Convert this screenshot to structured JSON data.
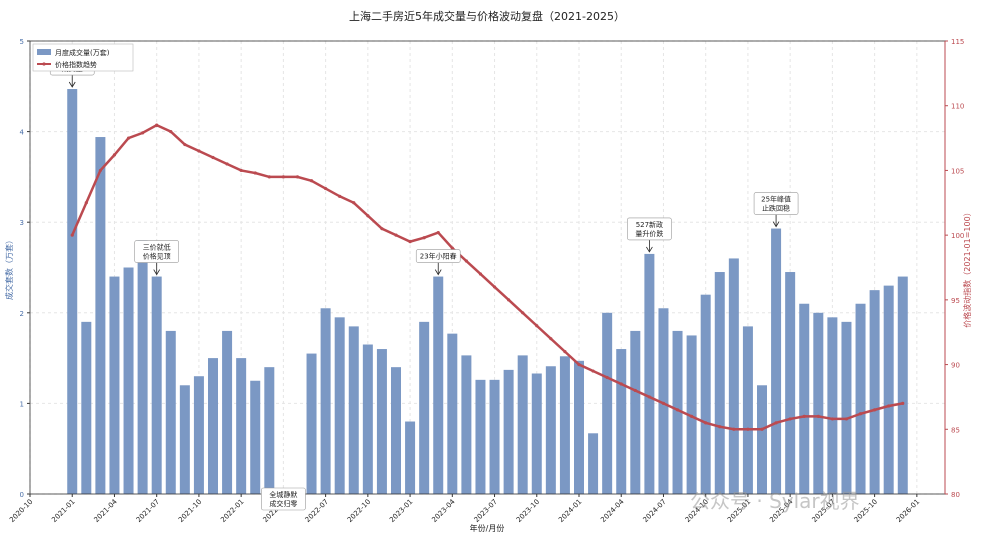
{
  "chart_data": {
    "type": "bar-line",
    "title": "上海二手房近5年成交量与价格波动复盘（2021-2025）",
    "x_label": "年份/月份",
    "y_label": "成交套数（万套）",
    "y2_label": "价格波动指数（2021-01=100）",
    "watermark": "公众号 · Sylar视界",
    "x": [
      "2021-01",
      "2021-02",
      "2021-03",
      "2021-04",
      "2021-05",
      "2021-06",
      "2021-07",
      "2021-08",
      "2021-09",
      "2021-10",
      "2021-11",
      "2021-12",
      "2022-01",
      "2022-02",
      "2022-03",
      "2022-04",
      "2022-05",
      "2022-06",
      "2022-07",
      "2022-08",
      "2022-09",
      "2022-10",
      "2022-11",
      "2022-12",
      "2023-01",
      "2023-02",
      "2023-03",
      "2023-04",
      "2023-05",
      "2023-06",
      "2023-07",
      "2023-08",
      "2023-09",
      "2023-10",
      "2023-11",
      "2023-12",
      "2024-01",
      "2024-02",
      "2024-03",
      "2024-04",
      "2024-05",
      "2024-06",
      "2024-07",
      "2024-08",
      "2024-09",
      "2024-10",
      "2024-11",
      "2024-12",
      "2025-01",
      "2025-02",
      "2025-03",
      "2025-04",
      "2025-05",
      "2025-06",
      "2025-07",
      "2025-08",
      "2025-09",
      "2025-10",
      "2025-11",
      "2025-12"
    ],
    "series": [
      {
        "name": "月度成交量(万套)",
        "type": "bar",
        "color": "#7b98c4",
        "values": [
          4.47,
          1.9,
          3.94,
          2.4,
          2.5,
          2.8,
          2.4,
          1.8,
          1.2,
          1.3,
          1.5,
          1.8,
          1.5,
          1.25,
          1.4,
          0,
          0,
          1.55,
          2.05,
          1.95,
          1.85,
          1.65,
          1.6,
          1.4,
          0.8,
          1.9,
          2.4,
          1.77,
          1.53,
          1.26,
          1.26,
          1.37,
          1.53,
          1.33,
          1.41,
          1.52,
          1.47,
          0.67,
          2.0,
          1.6,
          1.8,
          2.65,
          2.05,
          1.8,
          1.75,
          2.2,
          2.45,
          2.6,
          1.85,
          1.2,
          2.93,
          2.45,
          2.1,
          2.0,
          1.95,
          1.9,
          2.1,
          2.25,
          2.3,
          2.4
        ]
      },
      {
        "name": "价格指数趋势",
        "type": "line",
        "axis": "y2",
        "color": "#bb4a50",
        "values": [
          100,
          102.5,
          105,
          106.2,
          107.5,
          107.9,
          108.5,
          108,
          107,
          106.5,
          106,
          105.5,
          105,
          104.8,
          104.5,
          104.5,
          104.5,
          104.2,
          103.6,
          103,
          102.5,
          101.5,
          100.5,
          100,
          99.5,
          99.8,
          100.2,
          99,
          98,
          97,
          96,
          95,
          94,
          93,
          92,
          91,
          90,
          89.5,
          89,
          88.5,
          88,
          87.5,
          87,
          86.5,
          86,
          85.5,
          85.2,
          85,
          85,
          85,
          85.5,
          85.8,
          86,
          86,
          85.8,
          85.8,
          86.2,
          86.5,
          86.8,
          87
        ]
      }
    ],
    "annotations": [
      {
        "x": "2021-01",
        "text": "峰值\n成交量"
      },
      {
        "x": "2021-07",
        "text": "三价就低\n价格见顶"
      },
      {
        "x": "2022-04",
        "text": "全城静默\n成交归零"
      },
      {
        "x": "2023-03",
        "text": "23年小阳春"
      },
      {
        "x": "2024-06",
        "text": "527新政\n量升价跌"
      },
      {
        "x": "2025-03",
        "text": "25年峰值\n止跌回稳"
      }
    ],
    "xlim": [
      "2020-10",
      "2026-03"
    ],
    "xticks": [
      "2020-10",
      "2021-01",
      "2021-04",
      "2021-07",
      "2021-10",
      "2022-01",
      "2022-04",
      "2022-07",
      "2022-10",
      "2023-01",
      "2023-04",
      "2023-07",
      "2023-10",
      "2024-01",
      "2024-04",
      "2024-07",
      "2024-10",
      "2025-01",
      "2025-04",
      "2025-07",
      "2025-10",
      "2026-01"
    ],
    "ylim": [
      0,
      5
    ],
    "yticks": [
      0,
      1,
      2,
      3,
      4,
      5
    ],
    "y2lim": [
      80,
      115
    ],
    "y2ticks": [
      80,
      85,
      90,
      95,
      100,
      105,
      110,
      115
    ],
    "grid": true,
    "legend": "upper left"
  }
}
